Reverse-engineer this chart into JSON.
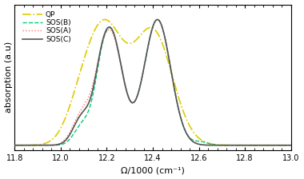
{
  "x_min": 11.8,
  "x_max": 13.0,
  "xlabel": "Ω/1000 (cm⁻¹)",
  "ylabel": "absorption (a.u)",
  "xtick_labels": [
    "11.8",
    "12.0",
    "12.2",
    "12.4",
    "12.6",
    "12.8",
    "13.0"
  ],
  "xtick_vals": [
    11.8,
    12.0,
    12.2,
    12.4,
    12.6,
    12.8,
    13.0
  ],
  "legend_entries": [
    "SOS(C)",
    "SOS(A)",
    "SOS(B)",
    "QP"
  ],
  "colors": {
    "SOSC": "#555555",
    "SOSA": "#ff7070",
    "SOSB": "#00cc77",
    "QP": "#ddcc00"
  },
  "linestyles": {
    "SOSC": "-",
    "SOSA": ":",
    "SOSB": "--",
    "QP": "-."
  },
  "linewidths": {
    "SOSC": 1.2,
    "SOSA": 1.0,
    "SOSB": 1.0,
    "QP": 1.2
  }
}
